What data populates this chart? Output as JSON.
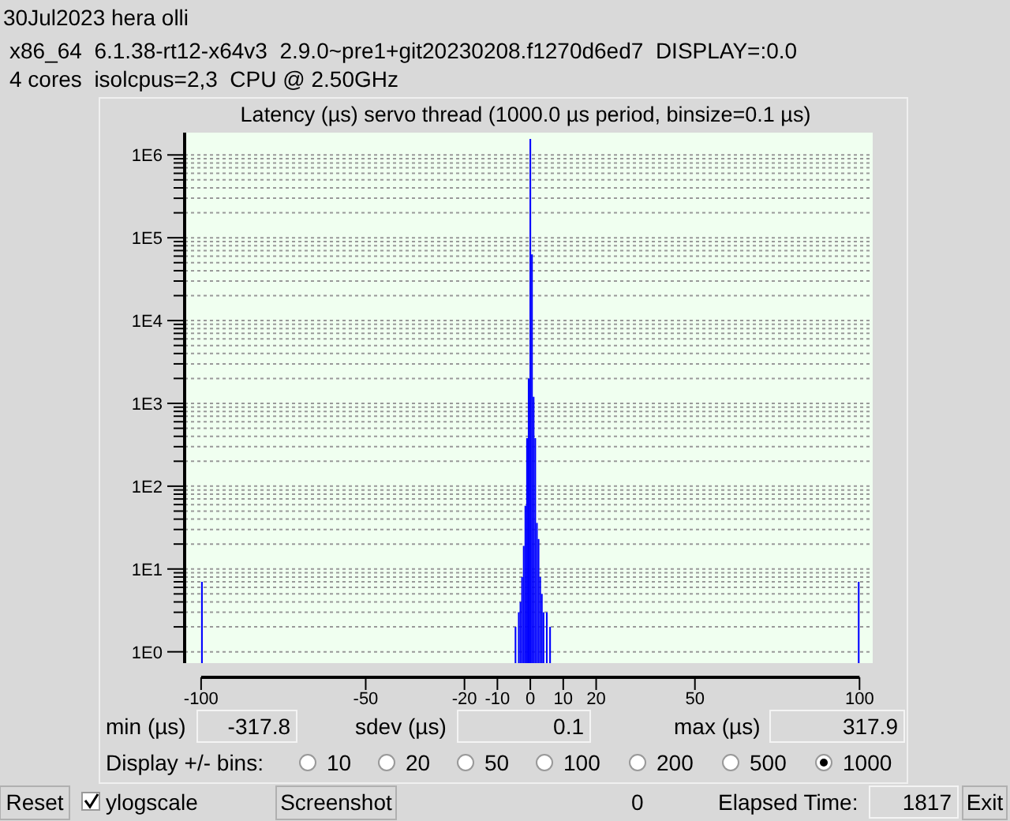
{
  "chart_data": {
    "type": "histogram",
    "title": "Latency (µs) servo thread (1000.0 µs period, binsize=0.1 µs)",
    "bins": [
      -100,
      -99.5,
      -4.75,
      -4.25,
      -3.75,
      -3.25,
      -2.75,
      -2.25,
      -1.75,
      -1.25,
      -0.75,
      -0.25,
      0.25,
      0.75,
      1.25,
      1.75,
      2.25,
      2.75,
      3.25,
      3.75,
      4.25,
      4.75,
      5.25,
      5.75,
      6.25,
      99.5,
      100
    ],
    "series": [
      {
        "color": "#0000ff",
        "values": [
          7,
          null,
          2,
          null,
          3,
          4,
          8,
          19,
          58,
          380,
          2000,
          1560000,
          63000,
          1200,
          380,
          36,
          23,
          8,
          5,
          3,
          null,
          3,
          null,
          2,
          null,
          7
        ]
      }
    ],
    "log": "y",
    "grid": "y",
    "xlim": [
      -105,
      104
    ],
    "xticks": [
      -100,
      -50,
      -20,
      -10,
      0,
      10,
      20,
      50,
      100
    ],
    "ylim": [
      0.73,
      1860000
    ],
    "yticks": [
      {
        "value": 1,
        "label": "1E0"
      },
      {
        "value": 2,
        "label": null
      },
      {
        "value": 3,
        "label": null
      },
      {
        "value": 4,
        "label": null
      },
      {
        "value": 5,
        "label": null
      },
      {
        "value": 6,
        "label": null
      },
      {
        "value": 7,
        "label": null
      },
      {
        "value": 8,
        "label": null
      },
      {
        "value": 9,
        "label": null
      },
      {
        "value": 10,
        "label": "1E1"
      },
      {
        "value": 20,
        "label": null
      },
      {
        "value": 30,
        "label": null
      },
      {
        "value": 40,
        "label": null
      },
      {
        "value": 50,
        "label": null
      },
      {
        "value": 60,
        "label": null
      },
      {
        "value": 70,
        "label": null
      },
      {
        "value": 80,
        "label": null
      },
      {
        "value": 90,
        "label": null
      },
      {
        "value": 100,
        "label": "1E2"
      },
      {
        "value": 200,
        "label": null
      },
      {
        "value": 300,
        "label": null
      },
      {
        "value": 400,
        "label": null
      },
      {
        "value": 500,
        "label": null
      },
      {
        "value": 600,
        "label": null
      },
      {
        "value": 700,
        "label": null
      },
      {
        "value": 800,
        "label": null
      },
      {
        "value": 900,
        "label": null
      },
      {
        "value": 1000,
        "label": "1E3"
      },
      {
        "value": 2000,
        "label": null
      },
      {
        "value": 3000,
        "label": null
      },
      {
        "value": 4000,
        "label": null
      },
      {
        "value": 5000,
        "label": null
      },
      {
        "value": 6000,
        "label": null
      },
      {
        "value": 7000,
        "label": null
      },
      {
        "value": 8000,
        "label": null
      },
      {
        "value": 9000,
        "label": null
      },
      {
        "value": 10000,
        "label": "1E4"
      },
      {
        "value": 20000,
        "label": null
      },
      {
        "value": 30000,
        "label": null
      },
      {
        "value": 40000,
        "label": null
      },
      {
        "value": 50000,
        "label": null
      },
      {
        "value": 60000,
        "label": null
      },
      {
        "value": 70000,
        "label": null
      },
      {
        "value": 80000,
        "label": null
      },
      {
        "value": 90000,
        "label": null
      },
      {
        "value": 100000,
        "label": "1E5"
      },
      {
        "value": 200000,
        "label": null
      },
      {
        "value": 300000,
        "label": null
      },
      {
        "value": 400000,
        "label": null
      },
      {
        "value": 500000,
        "label": null
      },
      {
        "value": 600000,
        "label": null
      },
      {
        "value": 700000,
        "label": null
      },
      {
        "value": 800000,
        "label": null
      },
      {
        "value": 900000,
        "label": null
      },
      {
        "value": 1000000,
        "label": "1E6"
      }
    ],
    "annotations": [
      "30Jul2023 hera olli",
      "x86_64  6.1.38-rt12-x64v3  2.9.0~pre1+git20230208.f1270d6ed7  DISPLAY=:0.0",
      "4 cores  isolcpus=2,3  CPU @ 2.50GHz",
      "min (µs)",
      "-317.8",
      "sdev (µs)",
      "0.1",
      "max (µs)",
      "317.9",
      "Display +/- bins:",
      "10",
      "20",
      "50",
      "100",
      "200",
      "500",
      "1000",
      "Reset",
      "ylogscale",
      "Screenshot",
      "0",
      "Elapsed Time:",
      "1817",
      "Exit"
    ]
  }
}
